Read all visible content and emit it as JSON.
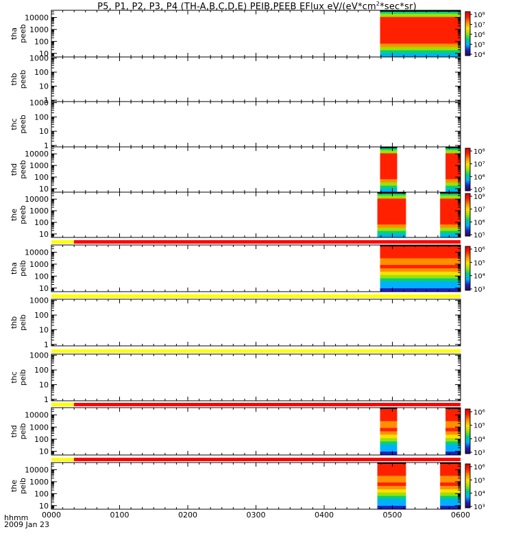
{
  "title": {
    "prefix": "P5, P1, P2, P3, P4 (TH-A,B,C,D,E) PEIB,PEEB EFlux eV/(eV*cm",
    "sup": "2",
    "suffix": "*sec*sr)"
  },
  "footer": {
    "line1": "hhmm",
    "line2": "2009 Jan 23"
  },
  "colors": {
    "spectrogram": [
      "#2a0a55",
      "#2020c0",
      "#00b0ff",
      "#00d080",
      "#a0e000",
      "#ffe000",
      "#ff9000",
      "#ff2000",
      "#e00000"
    ],
    "flag_good": "#ff0000",
    "flag_warn": "#ffff00",
    "nodata": "#000000"
  },
  "chart_data": {
    "type": "heatmap",
    "x_axis": {
      "label": "hhmm",
      "date": "2009 Jan 23",
      "ticks": [
        "0000",
        "0100",
        "0200",
        "0300",
        "0400",
        "0500",
        "0600"
      ],
      "range_hours": [
        0,
        6
      ]
    },
    "y_scale": "log",
    "panels": [
      {
        "probe": "tha",
        "instrument": "peeb",
        "y_ticks": [
          "10",
          "100",
          "1000",
          "10000"
        ],
        "ylim": [
          5,
          40000
        ],
        "colorbar_ticks": [
          "10⁴",
          "10⁵",
          "10⁶",
          "10⁷",
          "10⁸"
        ],
        "data_intervals_hours": [
          [
            4.82,
            6.0
          ]
        ],
        "flag_bar": null
      },
      {
        "probe": "thb",
        "instrument": "peeb",
        "y_ticks": [
          "1",
          "10",
          "100",
          "1000"
        ],
        "ylim": [
          0.8,
          1200
        ],
        "colorbar_ticks": [],
        "data_intervals_hours": [],
        "flag_bar": null
      },
      {
        "probe": "thc",
        "instrument": "peeb",
        "y_ticks": [
          "1",
          "10",
          "100",
          "1000"
        ],
        "ylim": [
          0.8,
          1200
        ],
        "colorbar_ticks": [],
        "data_intervals_hours": [],
        "flag_bar": null
      },
      {
        "probe": "thd",
        "instrument": "peeb",
        "y_ticks": [
          "10",
          "100",
          "1000",
          "10000"
        ],
        "ylim": [
          5,
          40000
        ],
        "colorbar_ticks": [
          "10⁵",
          "10⁶",
          "10⁷",
          "10⁸"
        ],
        "data_intervals_hours": [
          [
            4.82,
            5.07
          ],
          [
            5.78,
            6.0
          ]
        ],
        "flag_bar": null
      },
      {
        "probe": "the",
        "instrument": "peeb",
        "y_ticks": [
          "10",
          "100",
          "1000",
          "10000"
        ],
        "ylim": [
          5,
          40000
        ],
        "colorbar_ticks": [
          "10⁵",
          "10⁶",
          "10⁷",
          "10⁸"
        ],
        "data_intervals_hours": [
          [
            4.78,
            5.2
          ],
          [
            5.7,
            6.0
          ]
        ],
        "flag_bar": {
          "warn_until_hours": 0.33
        }
      },
      {
        "probe": "tha",
        "instrument": "peib",
        "y_ticks": [
          "10",
          "100",
          "1000",
          "10000"
        ],
        "ylim": [
          5,
          40000
        ],
        "colorbar_ticks": [
          "10³",
          "10⁴",
          "10⁵",
          "10⁶"
        ],
        "data_intervals_hours": [
          [
            4.82,
            6.0
          ]
        ],
        "flag_bar": {
          "warn_until_hours": 6.0
        }
      },
      {
        "probe": "thb",
        "instrument": "peib",
        "y_ticks": [
          "1",
          "10",
          "100",
          "1000"
        ],
        "ylim": [
          0.8,
          1200
        ],
        "colorbar_ticks": [],
        "data_intervals_hours": [],
        "flag_bar": {
          "warn_until_hours": 6.0
        }
      },
      {
        "probe": "thc",
        "instrument": "peib",
        "y_ticks": [
          "1",
          "10",
          "100",
          "1000"
        ],
        "ylim": [
          0.8,
          1200
        ],
        "colorbar_ticks": [],
        "data_intervals_hours": [],
        "flag_bar": {
          "warn_until_hours": 0.33
        }
      },
      {
        "probe": "thd",
        "instrument": "peib",
        "y_ticks": [
          "10",
          "100",
          "1000",
          "10000"
        ],
        "ylim": [
          5,
          40000
        ],
        "colorbar_ticks": [
          "10³",
          "10⁴",
          "10⁵",
          "10⁶"
        ],
        "data_intervals_hours": [
          [
            4.82,
            5.07
          ],
          [
            5.78,
            6.0
          ]
        ],
        "flag_bar": {
          "warn_until_hours": 0.33
        }
      },
      {
        "probe": "the",
        "instrument": "peib",
        "y_ticks": [
          "10",
          "100",
          "1000",
          "10000"
        ],
        "ylim": [
          5,
          40000
        ],
        "colorbar_ticks": [
          "10³",
          "10⁴",
          "10⁵",
          "10⁶"
        ],
        "data_intervals_hours": [
          [
            4.78,
            5.2
          ],
          [
            5.7,
            6.0
          ]
        ],
        "flag_bar": null
      }
    ]
  }
}
